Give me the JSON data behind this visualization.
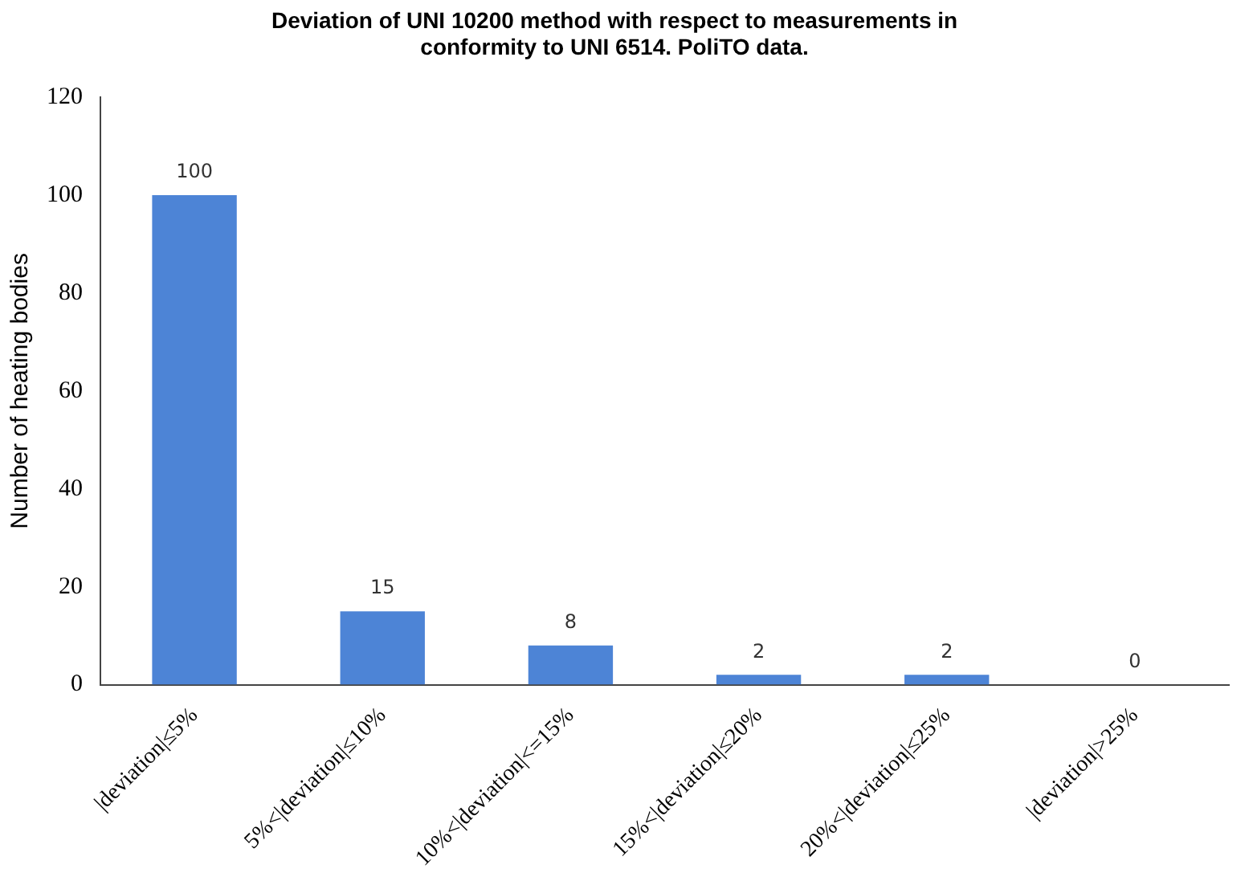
{
  "chart_data": {
    "type": "bar",
    "title": [
      "Deviation of UNI 10200 method with respect to measurements in",
      "conformity to UNI 6514. PoliTO data."
    ],
    "ylabel": "Number of heating bodies",
    "categories": [
      "|deviation|≤5%",
      "5%<|deviation|≤10%",
      "10%<|deviation|<=15%",
      "15%<|deviation|≤20%",
      "20%<|deviation|≤25%",
      "|deviation|>25%"
    ],
    "values": [
      100,
      15,
      8,
      2,
      2,
      0
    ],
    "color": "#4d84d6",
    "ylim": [
      0,
      120
    ],
    "yticks": [
      0,
      20,
      40,
      60,
      80,
      100,
      120
    ],
    "grid": false,
    "data_labels": true,
    "legend": false
  }
}
